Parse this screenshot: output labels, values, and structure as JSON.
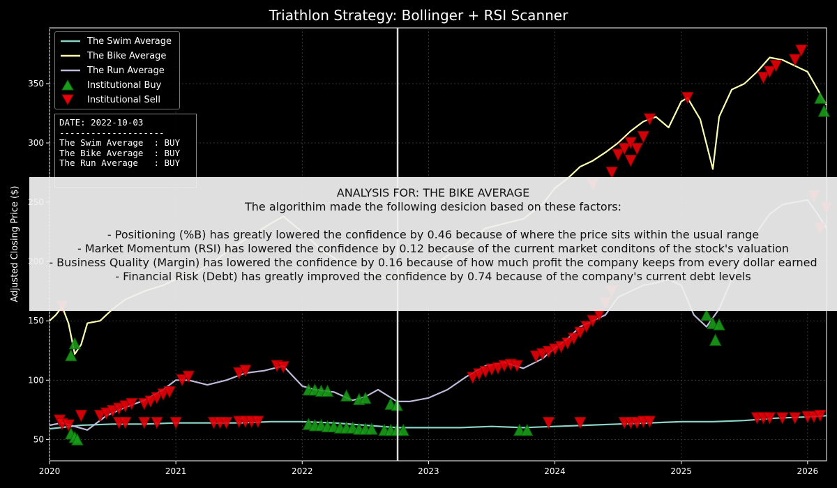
{
  "title": "Triathlon Strategy: Bollinger + RSI Scanner",
  "chart_data": {
    "type": "line",
    "title": "Triathlon Strategy: Bollinger + RSI Scanner",
    "ylabel": "Adjusted Closing Price ($)",
    "xlabel": "",
    "xlim": [
      2020.0,
      2026.15
    ],
    "ylim": [
      32,
      397
    ],
    "x_ticks": [
      "2020",
      "2021",
      "2022",
      "2023",
      "2024",
      "2025",
      "2026"
    ],
    "y_ticks": [
      "50",
      "100",
      "150",
      "200",
      "250",
      "300",
      "350"
    ],
    "grid": true,
    "legend_position": "top-left",
    "marker_date_x": 2022.755,
    "colors": {
      "swim": "#8dd3c7",
      "bike": "#ffffb3",
      "run": "#bebada",
      "buy": "#1a9c1a",
      "sell": "#e8000b"
    },
    "series": [
      {
        "name": "The Swim Average",
        "x": [
          2020.0,
          2020.25,
          2020.5,
          2020.75,
          2021.0,
          2021.25,
          2021.5,
          2021.75,
          2022.0,
          2022.25,
          2022.5,
          2022.75,
          2023.0,
          2023.25,
          2023.5,
          2023.75,
          2024.0,
          2024.25,
          2024.5,
          2024.75,
          2025.0,
          2025.25,
          2025.5,
          2025.75,
          2026.0,
          2026.15
        ],
        "values": [
          59,
          62,
          63,
          63,
          64,
          64,
          64,
          65,
          65,
          64,
          62,
          60,
          60,
          60,
          61,
          60,
          61,
          62,
          63,
          64,
          65,
          65,
          66,
          68,
          69,
          70
        ]
      },
      {
        "name": "The Bike Average",
        "x": [
          2020.0,
          2020.05,
          2020.1,
          2020.15,
          2020.2,
          2020.25,
          2020.3,
          2020.4,
          2020.5,
          2020.6,
          2020.75,
          2020.9,
          2021.0,
          2021.15,
          2021.3,
          2021.45,
          2021.6,
          2021.75,
          2021.85,
          2022.0,
          2022.15,
          2022.3,
          2022.45,
          2022.55,
          2022.7,
          2022.85,
          2023.0,
          2023.15,
          2023.3,
          2023.45,
          2023.6,
          2023.75,
          2023.9,
          2024.0,
          2024.1,
          2024.2,
          2024.3,
          2024.4,
          2024.5,
          2024.6,
          2024.7,
          2024.8,
          2024.9,
          2025.0,
          2025.05,
          2025.15,
          2025.25,
          2025.3,
          2025.4,
          2025.5,
          2025.6,
          2025.7,
          2025.8,
          2025.9,
          2026.0,
          2026.15
        ],
        "values": [
          150,
          155,
          162,
          148,
          122,
          130,
          148,
          150,
          160,
          168,
          175,
          180,
          185,
          190,
          200,
          212,
          222,
          232,
          238,
          225,
          210,
          200,
          193,
          190,
          185,
          188,
          193,
          205,
          215,
          228,
          232,
          236,
          248,
          262,
          270,
          280,
          285,
          292,
          300,
          310,
          318,
          322,
          313,
          335,
          338,
          320,
          278,
          322,
          345,
          350,
          360,
          372,
          370,
          365,
          360,
          332
        ]
      },
      {
        "name": "The Run Average",
        "x": [
          2020.0,
          2020.1,
          2020.2,
          2020.3,
          2020.45,
          2020.6,
          2020.75,
          2020.9,
          2021.0,
          2021.1,
          2021.25,
          2021.4,
          2021.55,
          2021.7,
          2021.85,
          2022.0,
          2022.1,
          2022.25,
          2022.4,
          2022.5,
          2022.6,
          2022.75,
          2022.85,
          2023.0,
          2023.15,
          2023.3,
          2023.45,
          2023.6,
          2023.75,
          2023.9,
          2024.0,
          2024.1,
          2024.2,
          2024.3,
          2024.4,
          2024.5,
          2024.6,
          2024.7,
          2024.8,
          2024.9,
          2025.0,
          2025.1,
          2025.2,
          2025.3,
          2025.4,
          2025.5,
          2025.6,
          2025.7,
          2025.8,
          2025.9,
          2026.0,
          2026.08,
          2026.15
        ],
        "values": [
          62,
          64,
          61,
          58,
          70,
          77,
          83,
          92,
          100,
          100,
          96,
          100,
          106,
          108,
          112,
          95,
          92,
          90,
          83,
          86,
          92,
          82,
          82,
          85,
          92,
          103,
          112,
          115,
          110,
          118,
          127,
          135,
          145,
          150,
          155,
          170,
          175,
          180,
          182,
          185,
          180,
          155,
          145,
          160,
          185,
          205,
          225,
          240,
          248,
          250,
          252,
          240,
          228
        ]
      }
    ],
    "buy_signals": {
      "name": "Institutional Buy",
      "x": [
        2020.17,
        2020.2,
        2020.22,
        2020.17,
        2020.2,
        2022.05,
        2022.1,
        2022.15,
        2022.2,
        2022.25,
        2022.3,
        2022.35,
        2022.4,
        2022.45,
        2022.5,
        2022.55,
        2022.65,
        2022.7,
        2022.75,
        2022.8,
        2022.05,
        2022.1,
        2022.15,
        2022.2,
        2022.35,
        2022.45,
        2022.5,
        2022.7,
        2022.75,
        2023.72,
        2023.78,
        2025.2,
        2025.25,
        2025.3,
        2025.27,
        2026.1,
        2026.13
      ],
      "values": [
        55,
        52,
        50,
        121,
        131,
        63,
        62,
        62,
        61,
        61,
        60,
        60,
        60,
        59,
        59,
        59,
        58,
        58,
        58,
        58,
        92,
        92,
        91,
        91,
        87,
        84,
        85,
        80,
        79,
        58,
        58,
        155,
        148,
        147,
        134,
        338,
        327
      ]
    },
    "sell_signals": {
      "name": "Institutional Sell",
      "x": [
        2020.08,
        2020.1,
        2020.15,
        2020.25,
        2020.4,
        2020.45,
        2020.5,
        2020.55,
        2020.6,
        2020.65,
        2020.75,
        2020.8,
        2020.85,
        2020.9,
        2020.95,
        2021.05,
        2021.1,
        2021.8,
        2021.85,
        2021.5,
        2021.55,
        2020.55,
        2020.6,
        2020.75,
        2020.85,
        2021.0,
        2021.3,
        2021.35,
        2021.4,
        2021.5,
        2021.55,
        2021.6,
        2021.65,
        2023.35,
        2023.4,
        2023.45,
        2023.5,
        2023.55,
        2023.6,
        2023.65,
        2023.7,
        2023.85,
        2023.9,
        2023.95,
        2024.0,
        2024.05,
        2024.1,
        2024.15,
        2024.2,
        2024.25,
        2024.3,
        2024.35,
        2024.4,
        2024.45,
        2024.5,
        2024.55,
        2024.6,
        2024.7,
        2024.75,
        2025.05,
        2025.65,
        2025.7,
        2025.75,
        2025.9,
        2025.95,
        2026.05,
        2026.1,
        2026.15,
        2023.95,
        2024.2,
        2024.55,
        2024.6,
        2024.65,
        2024.7,
        2024.75,
        2025.6,
        2025.65,
        2025.7,
        2025.8,
        2025.9,
        2026.0,
        2026.05,
        2026.1,
        2020.1,
        2024.3,
        2024.45,
        2024.6,
        2024.65
      ],
      "values": [
        66,
        63,
        62,
        70,
        70,
        72,
        74,
        76,
        78,
        80,
        80,
        82,
        85,
        88,
        90,
        100,
        103,
        112,
        111,
        106,
        108,
        64,
        64,
        64,
        64,
        64,
        64,
        64,
        64,
        65,
        65,
        65,
        65,
        102,
        105,
        107,
        109,
        110,
        112,
        113,
        112,
        120,
        122,
        124,
        126,
        128,
        131,
        135,
        140,
        145,
        150,
        155,
        165,
        175,
        290,
        295,
        300,
        305,
        320,
        338,
        355,
        360,
        365,
        370,
        378,
        255,
        228,
        245,
        64,
        64,
        64,
        64,
        64,
        65,
        65,
        68,
        68,
        68,
        68,
        68,
        69,
        69,
        70,
        162,
        265,
        275,
        285,
        295
      ]
    }
  },
  "legend": {
    "items": [
      {
        "label": "The Swim Average"
      },
      {
        "label": "The Bike Average"
      },
      {
        "label": "The Run Average"
      },
      {
        "label": "Institutional Buy"
      },
      {
        "label": "Institutional Sell"
      }
    ]
  },
  "info_box": {
    "date_line": "DATE: 2022-10-03",
    "separator": "--------------------",
    "swim_line": "The Swim Average  : BUY",
    "bike_line": "The Bike Average  : BUY",
    "run_line": "The Run Average   : BUY"
  },
  "analysis": {
    "heading": "ANALYSIS FOR: THE BIKE AVERAGE",
    "intro": "The algorithim made the following desicion based on these factors:",
    "factors": [
      "- Positioning (%B) has greatly lowered the confidence by 0.46 because of where the price sits within the usual range",
      "- Market Momentum (RSI) has lowered the confidence by 0.12 because of the current market conditons of the stock's valuation",
      "- Business Quality (Margin) has lowered the confidence by 0.16 because of how much profit the company keeps from every dollar earned",
      "- Financial Risk (Debt) has greatly improved the confidence by 0.74 because of the company's current debt levels"
    ]
  }
}
